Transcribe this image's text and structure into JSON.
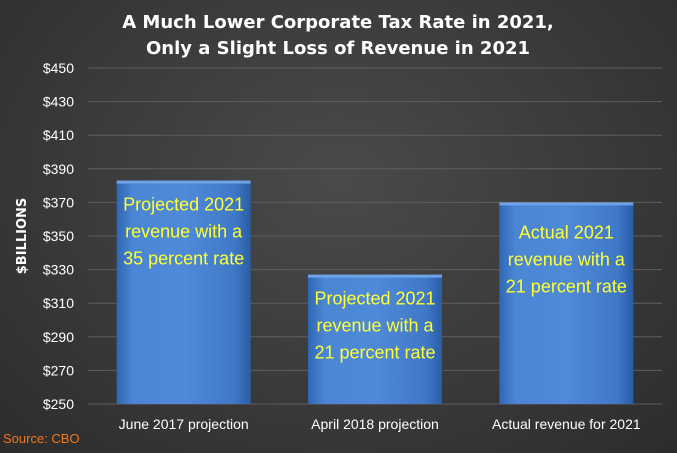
{
  "chart_data": {
    "type": "bar",
    "title_lines": [
      "A Much Lower Corporate Tax Rate in 2021,",
      "Only a Slight Loss of Revenue in 2021"
    ],
    "ylabel": "$BILLIONS",
    "xlabel": "",
    "categories": [
      "June 2017 projection",
      "April 2018 projection",
      "Actual revenue for 2021"
    ],
    "values": [
      383,
      327,
      370
    ],
    "annotations": [
      [
        "Projected 2021",
        "revenue with a",
        "35 percent rate"
      ],
      [
        "Projected 2021",
        "revenue with a",
        "21 percent rate"
      ],
      [
        "Actual 2021",
        "revenue with a",
        "21 percent rate"
      ]
    ],
    "ylim": [
      250,
      450
    ],
    "yticks": [
      250,
      270,
      290,
      310,
      330,
      350,
      370,
      390,
      410,
      430,
      450
    ],
    "ytick_labels": [
      "$250",
      "$270",
      "$290",
      "$310",
      "$330",
      "$350",
      "$370",
      "$390",
      "$410",
      "$430",
      "$450"
    ],
    "grid": true,
    "legend": "none",
    "source": "Source: CBO",
    "colors": {
      "bar": "#4a86d4",
      "bar_light": "#6fa3e6",
      "bar_dark": "#2f67b3",
      "annotation": "#ffff33",
      "grid": "#5e5e5e",
      "source": "#f07820"
    }
  }
}
